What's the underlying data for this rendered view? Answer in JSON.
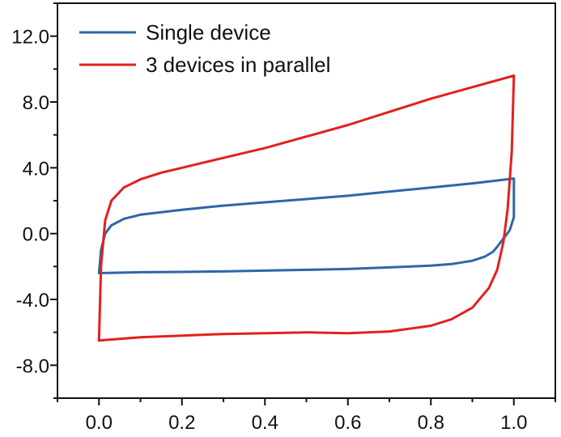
{
  "chart_data": {
    "type": "line",
    "title": "",
    "xlabel": "",
    "ylabel": "",
    "xlim": [
      -0.1,
      1.1
    ],
    "ylim": [
      -10.0,
      14.0
    ],
    "x_ticks": [
      0.0,
      0.2,
      0.4,
      0.6,
      0.8,
      1.0
    ],
    "x_tick_labels": [
      "0.0",
      "0.2",
      "0.4",
      "0.6",
      "0.8",
      "1.0"
    ],
    "y_ticks": [
      12.0,
      8.0,
      4.0,
      0.0,
      -4.0,
      -8.0
    ],
    "y_tick_labels": [
      "12.0",
      "8.0",
      "4.0",
      "0.0",
      "-4.0",
      "-8.0"
    ],
    "grid": false,
    "legend_position": "top-left",
    "series": [
      {
        "name": "Single device",
        "color": "#2e66a8",
        "x": [
          0.0,
          0.005,
          0.015,
          0.03,
          0.06,
          0.1,
          0.2,
          0.3,
          0.4,
          0.5,
          0.6,
          0.7,
          0.8,
          0.9,
          1.0,
          1.0,
          0.99,
          0.975,
          0.96,
          0.95,
          0.93,
          0.9,
          0.85,
          0.8,
          0.7,
          0.6,
          0.5,
          0.4,
          0.3,
          0.2,
          0.1,
          0.0,
          0.0
        ],
        "y": [
          -2.4,
          -1.0,
          0.0,
          0.5,
          0.9,
          1.15,
          1.45,
          1.7,
          1.9,
          2.1,
          2.3,
          2.55,
          2.8,
          3.05,
          3.35,
          1.0,
          0.2,
          -0.3,
          -0.8,
          -1.1,
          -1.4,
          -1.65,
          -1.85,
          -1.95,
          -2.05,
          -2.15,
          -2.2,
          -2.25,
          -2.3,
          -2.33,
          -2.35,
          -2.4,
          -2.4
        ]
      },
      {
        "name": "3 devices in parallel",
        "color": "#e2211c",
        "x": [
          0.0,
          0.005,
          0.015,
          0.03,
          0.06,
          0.1,
          0.15,
          0.2,
          0.3,
          0.4,
          0.5,
          0.6,
          0.7,
          0.8,
          0.9,
          1.0,
          0.995,
          0.985,
          0.975,
          0.96,
          0.94,
          0.9,
          0.85,
          0.8,
          0.7,
          0.6,
          0.5,
          0.4,
          0.3,
          0.2,
          0.1,
          0.05,
          0.0,
          0.0
        ],
        "y": [
          -6.5,
          -2.0,
          0.8,
          2.0,
          2.8,
          3.3,
          3.7,
          4.0,
          4.6,
          5.2,
          5.9,
          6.6,
          7.4,
          8.2,
          8.9,
          9.6,
          5.0,
          1.5,
          -0.5,
          -2.2,
          -3.3,
          -4.5,
          -5.2,
          -5.6,
          -5.95,
          -6.05,
          -6.0,
          -6.05,
          -6.1,
          -6.2,
          -6.3,
          -6.4,
          -6.5,
          -6.5
        ]
      }
    ]
  }
}
